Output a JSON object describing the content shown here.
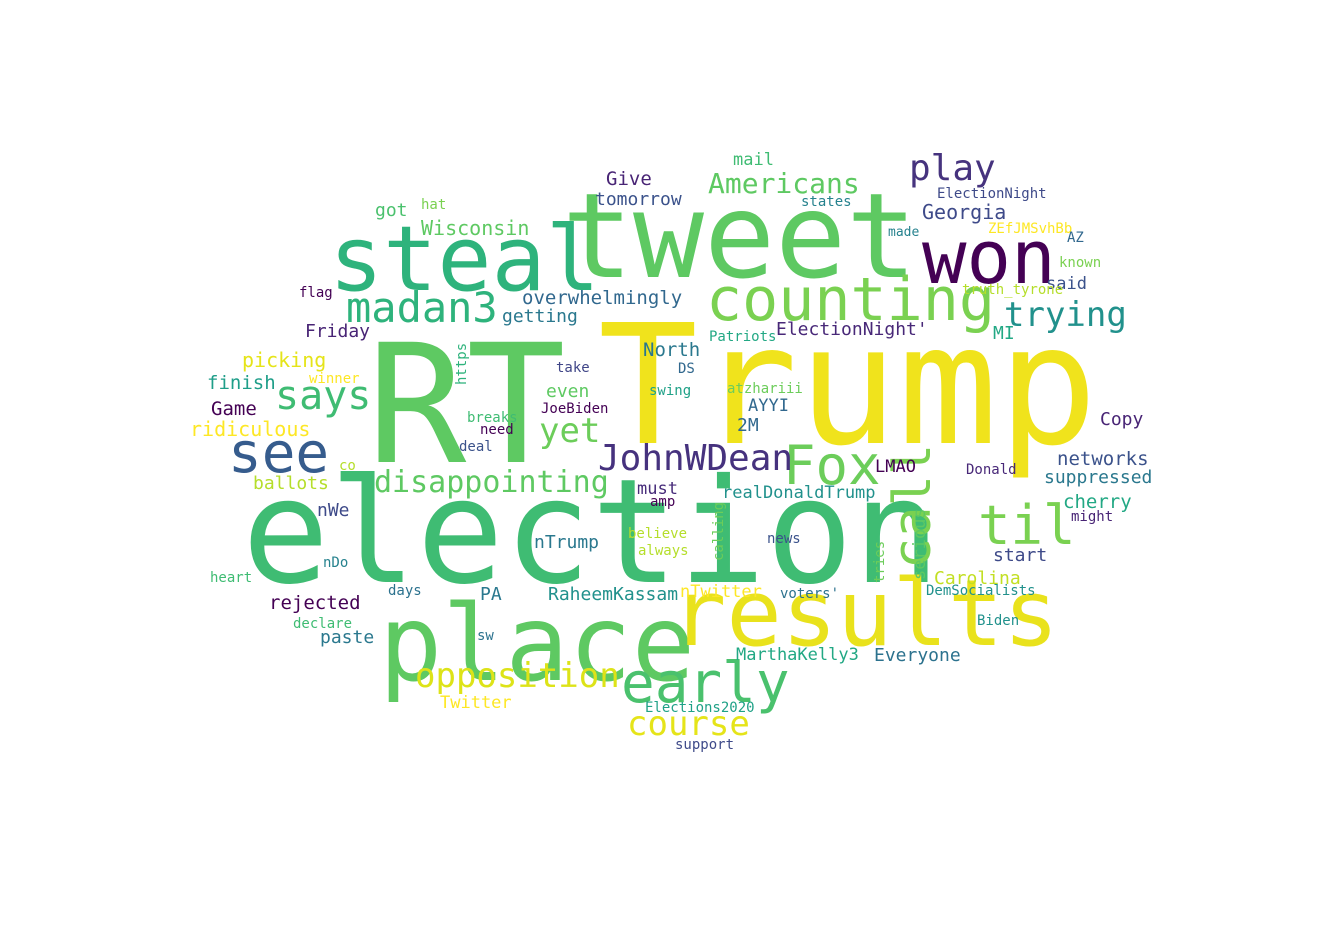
{
  "words": [
    {
      "text": "Trump",
      "color": "#f0e31c"
    },
    {
      "text": "RT",
      "color": "#5ec962"
    },
    {
      "text": "election",
      "color": "#3fbc73"
    },
    {
      "text": "tweet",
      "color": "#5ec962"
    },
    {
      "text": "place",
      "color": "#5ec962"
    },
    {
      "text": "results",
      "color": "#e9e21c"
    },
    {
      "text": "steal",
      "color": "#2eb37c"
    },
    {
      "text": "won",
      "color": "#440154"
    },
    {
      "text": "counting",
      "color": "#7ad151"
    },
    {
      "text": "see",
      "color": "#365c8d"
    },
    {
      "text": "early",
      "color": "#4ac16d"
    },
    {
      "text": "Fox",
      "color": "#6ccd5a"
    },
    {
      "text": "madan3",
      "color": "#2eb37c"
    },
    {
      "text": "til",
      "color": "#7ad151"
    },
    {
      "text": "call",
      "color": "#7ad151"
    },
    {
      "text": "says",
      "color": "#3fbc73"
    },
    {
      "text": "play",
      "color": "#46337e"
    },
    {
      "text": "JohnWDean",
      "color": "#46327e"
    },
    {
      "text": "opposition",
      "color": "#dde318"
    },
    {
      "text": "course",
      "color": "#e5e419"
    },
    {
      "text": "trying",
      "color": "#21918c"
    },
    {
      "text": "yet",
      "color": "#6ccd5a"
    },
    {
      "text": "disappointing",
      "color": "#5ec962"
    },
    {
      "text": "Americans",
      "color": "#5ec962"
    },
    {
      "text": "Georgia",
      "color": "#3e4a89"
    },
    {
      "text": "Wisconsin",
      "color": "#5ec962"
    },
    {
      "text": "overwhelmingly",
      "color": "#31688e"
    },
    {
      "text": "getting",
      "color": "#2a788e"
    },
    {
      "text": "ElectionNight'",
      "color": "#482878"
    },
    {
      "text": "Give",
      "color": "#482475"
    },
    {
      "text": "tomorrow",
      "color": "#3b528b"
    },
    {
      "text": "mail",
      "color": "#3fbc73"
    },
    {
      "text": "got",
      "color": "#4ac16d"
    },
    {
      "text": "hat",
      "color": "#7ad151"
    },
    {
      "text": "states",
      "color": "#26828e"
    },
    {
      "text": "ElectionNight",
      "color": "#3e4a89"
    },
    {
      "text": "made",
      "color": "#26828e"
    },
    {
      "text": "ZEfJMSvhBb",
      "color": "#fde725"
    },
    {
      "text": "AZ",
      "color": "#31688e"
    },
    {
      "text": "known",
      "color": "#7ad151"
    },
    {
      "text": "said",
      "color": "#3b528b"
    },
    {
      "text": "truth_tyrone",
      "color": "#b5de2b"
    },
    {
      "text": "flag",
      "color": "#440154"
    },
    {
      "text": "Friday",
      "color": "#482475"
    },
    {
      "text": "MI",
      "color": "#22a884"
    },
    {
      "text": "Patriots",
      "color": "#22a884"
    },
    {
      "text": "North",
      "color": "#2a788e"
    },
    {
      "text": "picking",
      "color": "#e5e419"
    },
    {
      "text": "finish",
      "color": "#1f9e89"
    },
    {
      "text": "winner",
      "color": "#fde725"
    },
    {
      "text": "https",
      "color": "#2eb37c"
    },
    {
      "text": "take",
      "color": "#404688"
    },
    {
      "text": "DS",
      "color": "#31688e"
    },
    {
      "text": "swing",
      "color": "#1fa187"
    },
    {
      "text": "atzhariii",
      "color": "#6ccd5a"
    },
    {
      "text": "even",
      "color": "#5ec962"
    },
    {
      "text": "AYYI",
      "color": "#31688e"
    },
    {
      "text": "Game",
      "color": "#440154"
    },
    {
      "text": "ridiculous",
      "color": "#fde725"
    },
    {
      "text": "breaks",
      "color": "#3fbc73"
    },
    {
      "text": "JoeBiden",
      "color": "#440154"
    },
    {
      "text": "need",
      "color": "#440154"
    },
    {
      "text": "deal",
      "color": "#3b528b"
    },
    {
      "text": "2M",
      "color": "#31688e"
    },
    {
      "text": "Copy",
      "color": "#482475"
    },
    {
      "text": "networks",
      "color": "#3b528b"
    },
    {
      "text": "suppressed",
      "color": "#2a788e"
    },
    {
      "text": "LMAO",
      "color": "#440154"
    },
    {
      "text": "Donald",
      "color": "#482878"
    },
    {
      "text": "co",
      "color": "#b5de2b"
    },
    {
      "text": "ballots",
      "color": "#b5de2b"
    },
    {
      "text": "must",
      "color": "#472c7a"
    },
    {
      "text": "realDonaldTrump",
      "color": "#21918c"
    },
    {
      "text": "amp",
      "color": "#440154"
    },
    {
      "text": "cherry",
      "color": "#22a884"
    },
    {
      "text": "might",
      "color": "#482475"
    },
    {
      "text": "nWe",
      "color": "#3e4a89"
    },
    {
      "text": "serious",
      "color": "#5ec962"
    },
    {
      "text": "believe",
      "color": "#b5de2b"
    },
    {
      "text": "calling",
      "color": "#6ccd5a"
    },
    {
      "text": "news",
      "color": "#3b528b"
    },
    {
      "text": "nTrump",
      "color": "#2a788e"
    },
    {
      "text": "always",
      "color": "#b5de2b"
    },
    {
      "text": "start",
      "color": "#3e4a89"
    },
    {
      "text": "tries",
      "color": "#6ccd5a"
    },
    {
      "text": "Carolina",
      "color": "#c2df23"
    },
    {
      "text": "nDo",
      "color": "#26828e"
    },
    {
      "text": "heart",
      "color": "#3fbc73"
    },
    {
      "text": "nTwitter",
      "color": "#fde725"
    },
    {
      "text": "days",
      "color": "#2c728e"
    },
    {
      "text": "voters'",
      "color": "#2c728e"
    },
    {
      "text": "DemSocialists",
      "color": "#21918c"
    },
    {
      "text": "RaheemKassam",
      "color": "#21918c"
    },
    {
      "text": "PA",
      "color": "#2a788e"
    },
    {
      "text": "rejected",
      "color": "#440154"
    },
    {
      "text": "declare",
      "color": "#3fbc73"
    },
    {
      "text": "sw",
      "color": "#2c728e"
    },
    {
      "text": "Biden",
      "color": "#21918c"
    },
    {
      "text": "paste",
      "color": "#2a788e"
    },
    {
      "text": "MarthaKelly3",
      "color": "#22a884"
    },
    {
      "text": "Everyone",
      "color": "#2c728e"
    },
    {
      "text": "Twitter",
      "color": "#fde725"
    },
    {
      "text": "Elections2020",
      "color": "#1fa187"
    },
    {
      "text": "support",
      "color": "#3e4a89"
    }
  ]
}
